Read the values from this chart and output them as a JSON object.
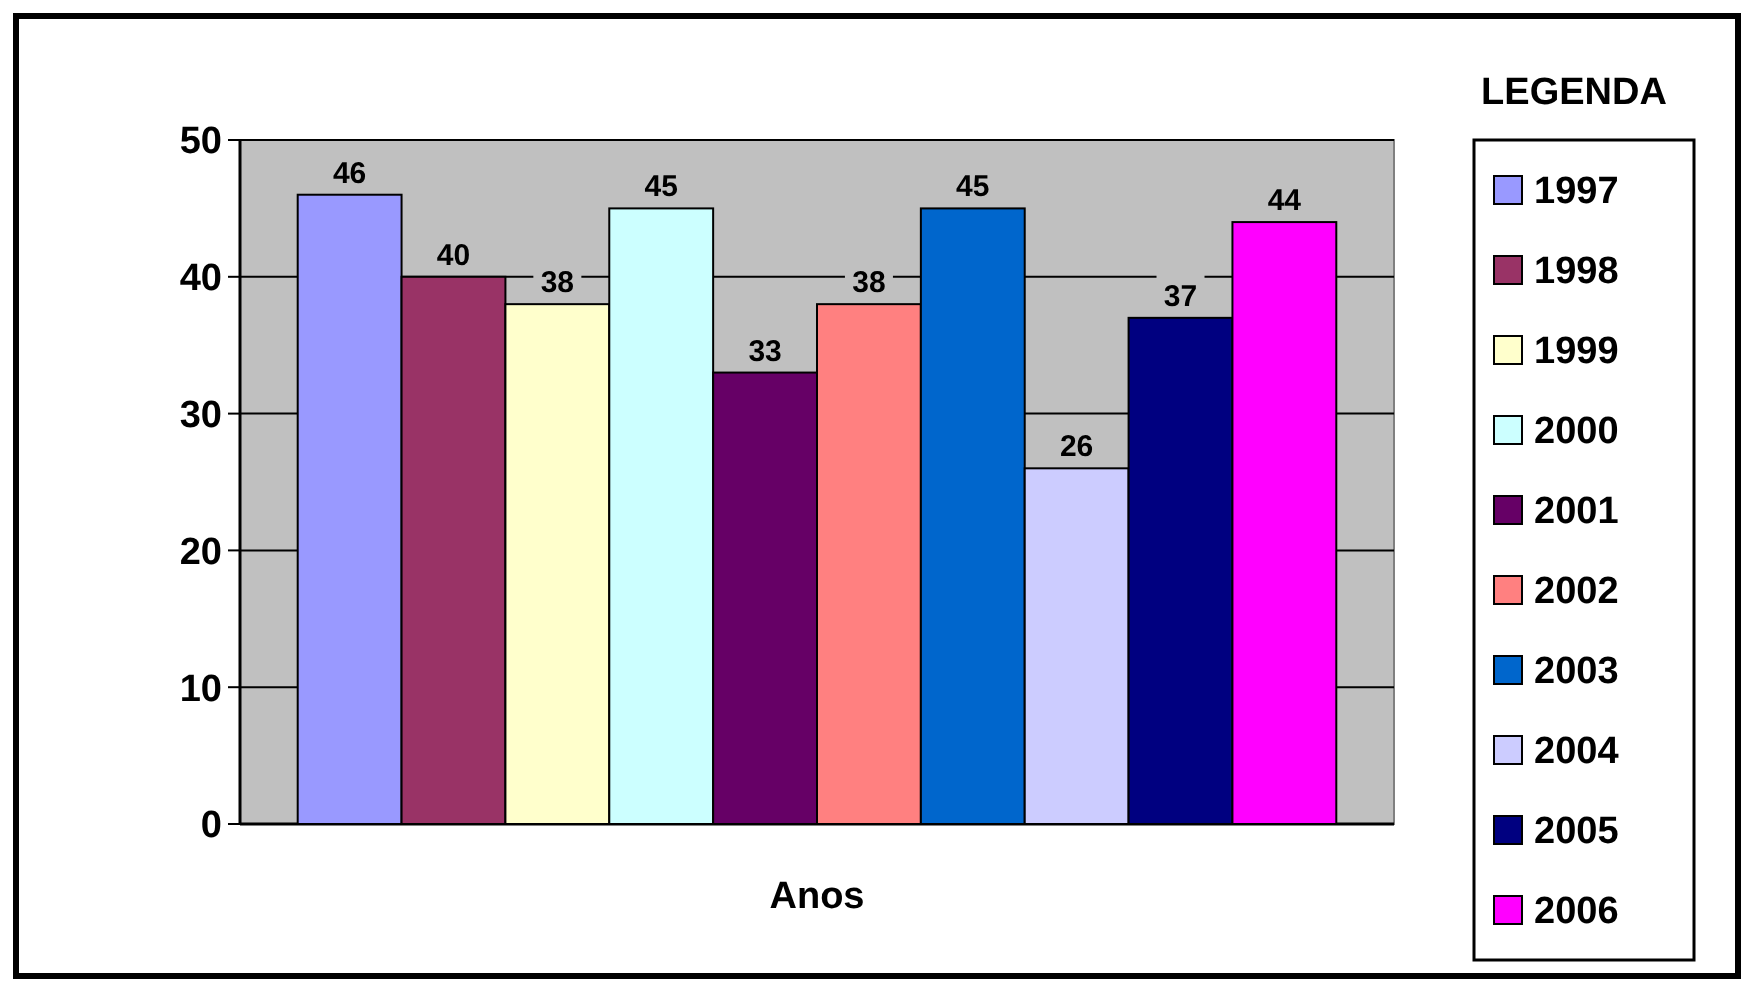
{
  "chart_data": {
    "type": "bar",
    "xlabel": "Anos",
    "legend_title": "LEGENDA",
    "categories": [
      null
    ],
    "series": [
      {
        "name": "1997",
        "color": "#9999ff",
        "values": [
          46
        ]
      },
      {
        "name": "1998",
        "color": "#993366",
        "values": [
          40
        ]
      },
      {
        "name": "1999",
        "color": "#ffffcc",
        "values": [
          38
        ]
      },
      {
        "name": "2000",
        "color": "#ccffff",
        "values": [
          45
        ]
      },
      {
        "name": "2001",
        "color": "#660066",
        "values": [
          33
        ]
      },
      {
        "name": "2002",
        "color": "#ff8080",
        "values": [
          38
        ]
      },
      {
        "name": "2003",
        "color": "#0066cc",
        "values": [
          45
        ]
      },
      {
        "name": "2004",
        "color": "#ccccff",
        "values": [
          26
        ]
      },
      {
        "name": "2005",
        "color": "#000080",
        "values": [
          37
        ]
      },
      {
        "name": "2006",
        "color": "#ff00ff",
        "values": [
          44
        ]
      }
    ],
    "ylim": [
      0,
      50
    ],
    "yticks": [
      0,
      10,
      20,
      30,
      40,
      50
    ],
    "grid": "y",
    "legend": "right",
    "data_labels": true
  }
}
